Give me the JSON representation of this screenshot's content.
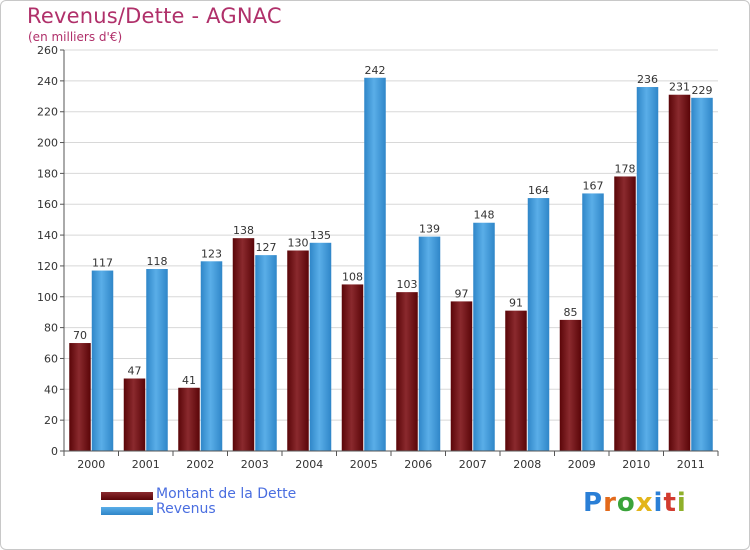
{
  "header": {
    "title": "Revenus/Dette - AGNAC",
    "subtitle": "(en milliers d'€)"
  },
  "legend": {
    "items": [
      {
        "label": "Montant de la Dette",
        "color": "#7a0f14"
      },
      {
        "label": "Revenus",
        "color": "#4aa3e8"
      }
    ]
  },
  "logo": {
    "letters": [
      "P",
      "r",
      "o",
      "x",
      "i",
      "t",
      "i"
    ],
    "colors": [
      "#2a7fd6",
      "#e36a1b",
      "#3aa33a",
      "#e3b51b",
      "#2a7fd6",
      "#d23b2f",
      "#8fb02a"
    ]
  },
  "chart_data": {
    "type": "bar",
    "categories": [
      "2000",
      "2001",
      "2002",
      "2003",
      "2004",
      "2005",
      "2006",
      "2007",
      "2008",
      "2009",
      "2010",
      "2011"
    ],
    "series": [
      {
        "name": "Montant de la Dette",
        "color": "#7a0f14",
        "values": [
          70,
          47,
          41,
          138,
          130,
          108,
          103,
          97,
          91,
          85,
          178,
          231
        ]
      },
      {
        "name": "Revenus",
        "color": "#4aa3e8",
        "values": [
          117,
          118,
          123,
          127,
          135,
          242,
          139,
          148,
          164,
          167,
          236,
          229
        ]
      }
    ],
    "ylim": [
      0,
      260
    ],
    "yticks": [
      0,
      20,
      40,
      60,
      80,
      100,
      120,
      140,
      160,
      180,
      200,
      220,
      240,
      260
    ],
    "grid": true,
    "legend": "bottom-left"
  }
}
